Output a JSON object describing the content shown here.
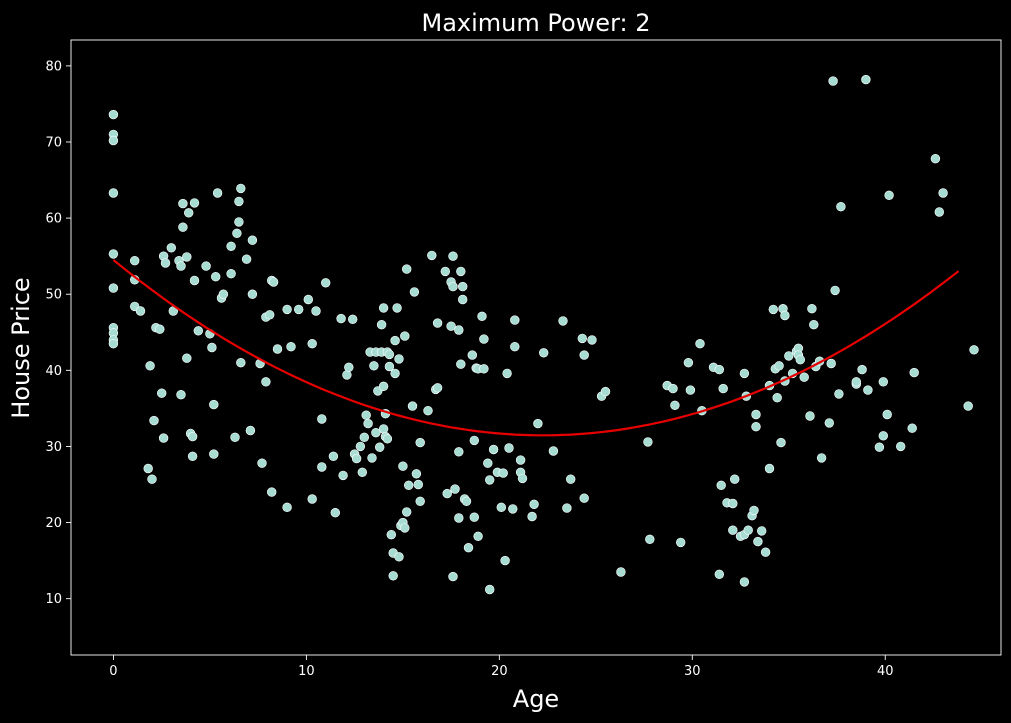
{
  "chart_data": {
    "type": "scatter",
    "title": "Maximum Power: 2",
    "xlabel": "Age",
    "ylabel": "House Price",
    "xlim": [
      -2.2,
      46.0
    ],
    "ylim": [
      2.6,
      83.4
    ],
    "xticks": [
      0,
      10,
      20,
      30,
      40
    ],
    "yticks": [
      10,
      20,
      30,
      40,
      50,
      60,
      70,
      80
    ],
    "grid": false,
    "background": "#000000",
    "point_color": "#a6dcd2",
    "fit_color": "#e60000",
    "fit": {
      "degree": 2,
      "coefficients": [
        54.5,
        -2.07,
        0.0465
      ],
      "x_range": [
        0,
        43.8
      ]
    },
    "points": [
      [
        0,
        73.6
      ],
      [
        0,
        71
      ],
      [
        0,
        70.2
      ],
      [
        0,
        63.3
      ],
      [
        0,
        55.3
      ],
      [
        0,
        50.8
      ],
      [
        0,
        45.6
      ],
      [
        0,
        44.9
      ],
      [
        0,
        44
      ],
      [
        0,
        43.5
      ],
      [
        1.1,
        54.4
      ],
      [
        1.1,
        51.9
      ],
      [
        1.1,
        48.4
      ],
      [
        1.4,
        47.8
      ],
      [
        1.8,
        27.1
      ],
      [
        1.9,
        40.6
      ],
      [
        2,
        25.7
      ],
      [
        2.1,
        33.4
      ],
      [
        2.2,
        45.6
      ],
      [
        2.4,
        45.4
      ],
      [
        2.5,
        37
      ],
      [
        2.6,
        31.1
      ],
      [
        2.6,
        55
      ],
      [
        2.7,
        54.1
      ],
      [
        3,
        56.1
      ],
      [
        3.1,
        47.8
      ],
      [
        3.4,
        54.4
      ],
      [
        3.5,
        53.7
      ],
      [
        3.5,
        36.8
      ],
      [
        3.6,
        58.8
      ],
      [
        3.6,
        61.9
      ],
      [
        3.8,
        41.6
      ],
      [
        3.8,
        54.9
      ],
      [
        3.9,
        60.7
      ],
      [
        4,
        31.7
      ],
      [
        4.1,
        28.7
      ],
      [
        4.1,
        31.3
      ],
      [
        4.2,
        51.8
      ],
      [
        4.2,
        62
      ],
      [
        4.4,
        45.2
      ],
      [
        4.8,
        53.7
      ],
      [
        5.0,
        44.8
      ],
      [
        5.1,
        43
      ],
      [
        5.2,
        35.5
      ],
      [
        5.2,
        29
      ],
      [
        5.3,
        52.3
      ],
      [
        5.4,
        63.3
      ],
      [
        5.6,
        49.5
      ],
      [
        5.7,
        50
      ],
      [
        6.1,
        52.7
      ],
      [
        6.1,
        56.3
      ],
      [
        6.3,
        31.2
      ],
      [
        6.4,
        58
      ],
      [
        6.5,
        59.5
      ],
      [
        6.5,
        62.2
      ],
      [
        6.6,
        63.9
      ],
      [
        6.6,
        41
      ],
      [
        6.9,
        54.6
      ],
      [
        7.1,
        32.1
      ],
      [
        7.2,
        57.1
      ],
      [
        7.2,
        50
      ],
      [
        7.6,
        40.9
      ],
      [
        7.7,
        27.8
      ],
      [
        7.9,
        38.5
      ],
      [
        7.9,
        47
      ],
      [
        8.1,
        47.3
      ],
      [
        8.2,
        24
      ],
      [
        8.2,
        51.8
      ],
      [
        8.3,
        51.6
      ],
      [
        8.5,
        42.8
      ],
      [
        9,
        48
      ],
      [
        9,
        22
      ],
      [
        9.2,
        43.1
      ],
      [
        9.6,
        48
      ],
      [
        10.1,
        49.3
      ],
      [
        10.3,
        23.1
      ],
      [
        10.3,
        43.5
      ],
      [
        10.5,
        47.8
      ],
      [
        10.8,
        27.3
      ],
      [
        10.8,
        33.6
      ],
      [
        11,
        51.5
      ],
      [
        11.4,
        28.7
      ],
      [
        11.5,
        21.3
      ],
      [
        11.8,
        46.8
      ],
      [
        11.9,
        26.2
      ],
      [
        12.1,
        39.4
      ],
      [
        12.2,
        40.4
      ],
      [
        12.4,
        46.7
      ],
      [
        12.5,
        29
      ],
      [
        12.6,
        28.4
      ],
      [
        12.8,
        30
      ],
      [
        12.9,
        26.6
      ],
      [
        13,
        31.2
      ],
      [
        13.1,
        34.1
      ],
      [
        13.2,
        33
      ],
      [
        13.3,
        42.4
      ],
      [
        13.4,
        28.5
      ],
      [
        13.5,
        40.6
      ],
      [
        13.6,
        42.4
      ],
      [
        13.6,
        31.8
      ],
      [
        13.7,
        37.3
      ],
      [
        13.8,
        29.9
      ],
      [
        13.9,
        42.4
      ],
      [
        13.9,
        46
      ],
      [
        14,
        48.2
      ],
      [
        14,
        32.3
      ],
      [
        14,
        37.9
      ],
      [
        14.1,
        31.3
      ],
      [
        14.1,
        34.3
      ],
      [
        14.2,
        31
      ],
      [
        14.2,
        42.4
      ],
      [
        14.3,
        40.5
      ],
      [
        14.3,
        42.1
      ],
      [
        14.4,
        18.4
      ],
      [
        14.5,
        16
      ],
      [
        14.5,
        13
      ],
      [
        14.6,
        43.9
      ],
      [
        14.6,
        39.6
      ],
      [
        14.7,
        48.2
      ],
      [
        14.8,
        15.5
      ],
      [
        14.8,
        41.5
      ],
      [
        14.9,
        19.6
      ],
      [
        15,
        20
      ],
      [
        15,
        27.4
      ],
      [
        15.1,
        44.5
      ],
      [
        15.1,
        19.3
      ],
      [
        15.2,
        53.3
      ],
      [
        15.2,
        21.4
      ],
      [
        15.3,
        24.9
      ],
      [
        15.5,
        35.3
      ],
      [
        15.6,
        50.3
      ],
      [
        15.7,
        26.4
      ],
      [
        15.8,
        25
      ],
      [
        15.9,
        30.5
      ],
      [
        15.9,
        22.8
      ],
      [
        16.3,
        34.7
      ],
      [
        16.5,
        55.1
      ],
      [
        16.7,
        37.5
      ],
      [
        16.8,
        46.2
      ],
      [
        16.8,
        37.7
      ],
      [
        17.2,
        53
      ],
      [
        17.3,
        23.8
      ],
      [
        17.5,
        51.6
      ],
      [
        17.5,
        45.8
      ],
      [
        17.6,
        55
      ],
      [
        17.6,
        12.9
      ],
      [
        17.6,
        51
      ],
      [
        17.7,
        24.4
      ],
      [
        17.9,
        20.6
      ],
      [
        17.9,
        45.3
      ],
      [
        17.9,
        29.3
      ],
      [
        18.0,
        40.8
      ],
      [
        18.0,
        53
      ],
      [
        18.1,
        51
      ],
      [
        18.1,
        49.3
      ],
      [
        18.2,
        23.1
      ],
      [
        18.3,
        22.8
      ],
      [
        18.4,
        16.7
      ],
      [
        18.6,
        42
      ],
      [
        18.7,
        30.8
      ],
      [
        18.7,
        20.7
      ],
      [
        18.8,
        40.3
      ],
      [
        18.9,
        18.2
      ],
      [
        18.9,
        40.2
      ],
      [
        19.1,
        47.1
      ],
      [
        19.2,
        44.1
      ],
      [
        19.2,
        40.2
      ],
      [
        19.4,
        27.8
      ],
      [
        19.5,
        25.6
      ],
      [
        19.5,
        11.2
      ],
      [
        19.7,
        29.6
      ],
      [
        19.9,
        26.6
      ],
      [
        20.1,
        22
      ],
      [
        20.2,
        26.5
      ],
      [
        20.3,
        15
      ],
      [
        20.4,
        39.6
      ],
      [
        20.5,
        29.8
      ],
      [
        20.7,
        21.8
      ],
      [
        20.8,
        46.6
      ],
      [
        20.8,
        43.1
      ],
      [
        21.1,
        26.6
      ],
      [
        21.1,
        28.2
      ],
      [
        21.2,
        25.8
      ],
      [
        21.7,
        20.8
      ],
      [
        21.8,
        22.4
      ],
      [
        22.0,
        33
      ],
      [
        22.3,
        42.3
      ],
      [
        22.8,
        29.4
      ],
      [
        23.3,
        46.5
      ],
      [
        23.5,
        21.9
      ],
      [
        23.7,
        25.7
      ],
      [
        24.3,
        44.2
      ],
      [
        24.4,
        42
      ],
      [
        24.4,
        23.2
      ],
      [
        24.8,
        44
      ],
      [
        25.3,
        36.6
      ],
      [
        25.5,
        37.2
      ],
      [
        26.3,
        13.5
      ],
      [
        27.7,
        30.6
      ],
      [
        27.8,
        17.8
      ],
      [
        28.7,
        38
      ],
      [
        29,
        37.6
      ],
      [
        29.1,
        35.4
      ],
      [
        29.4,
        17.4
      ],
      [
        29.8,
        41
      ],
      [
        29.9,
        37.4
      ],
      [
        30.4,
        43.5
      ],
      [
        30.5,
        34.7
      ],
      [
        31.1,
        40.4
      ],
      [
        31.4,
        40.1
      ],
      [
        31.4,
        13.2
      ],
      [
        31.6,
        37.6
      ],
      [
        31.5,
        24.9
      ],
      [
        31.8,
        22.6
      ],
      [
        32.1,
        22.5
      ],
      [
        32.1,
        19
      ],
      [
        32.2,
        25.7
      ],
      [
        32.5,
        18.2
      ],
      [
        32.7,
        18.4
      ],
      [
        32.7,
        39.6
      ],
      [
        32.7,
        12.2
      ],
      [
        32.8,
        36.6
      ],
      [
        32.9,
        19
      ],
      [
        33.1,
        20.9
      ],
      [
        33.2,
        21.6
      ],
      [
        33.3,
        34.2
      ],
      [
        33.3,
        32.6
      ],
      [
        33.4,
        17.5
      ],
      [
        33.6,
        18.9
      ],
      [
        33.8,
        16.1
      ],
      [
        34.0,
        38
      ],
      [
        34.0,
        27.1
      ],
      [
        34.2,
        48
      ],
      [
        34.3,
        40.2
      ],
      [
        34.4,
        36.4
      ],
      [
        34.5,
        40.6
      ],
      [
        34.6,
        30.5
      ],
      [
        34.7,
        48.1
      ],
      [
        34.8,
        38.6
      ],
      [
        34.8,
        47.2
      ],
      [
        35.0,
        41.9
      ],
      [
        35.2,
        39.6
      ],
      [
        35.4,
        42.5
      ],
      [
        35.5,
        42.9
      ],
      [
        35.5,
        42
      ],
      [
        35.6,
        41.4
      ],
      [
        35.8,
        39.1
      ],
      [
        36.1,
        34
      ],
      [
        36.2,
        48.1
      ],
      [
        36.3,
        46
      ],
      [
        36.4,
        40.5
      ],
      [
        36.6,
        41.2
      ],
      [
        36.7,
        28.5
      ],
      [
        37.1,
        33.1
      ],
      [
        37.2,
        40.9
      ],
      [
        37.3,
        78
      ],
      [
        37.4,
        50.5
      ],
      [
        37.6,
        36.9
      ],
      [
        37.7,
        61.5
      ],
      [
        38.5,
        38.2
      ],
      [
        38.5,
        38.5
      ],
      [
        39.0,
        78.2
      ],
      [
        39.1,
        37.4
      ],
      [
        38.8,
        40.1
      ],
      [
        39.7,
        29.9
      ],
      [
        39.9,
        38.5
      ],
      [
        39.9,
        31.4
      ],
      [
        40.1,
        34.2
      ],
      [
        40.2,
        63
      ],
      [
        40.8,
        30
      ],
      [
        41.4,
        32.4
      ],
      [
        41.5,
        39.7
      ],
      [
        42.6,
        67.8
      ],
      [
        42.8,
        60.8
      ],
      [
        43.0,
        63.3
      ],
      [
        44.3,
        35.3
      ],
      [
        44.6,
        42.7
      ]
    ]
  }
}
